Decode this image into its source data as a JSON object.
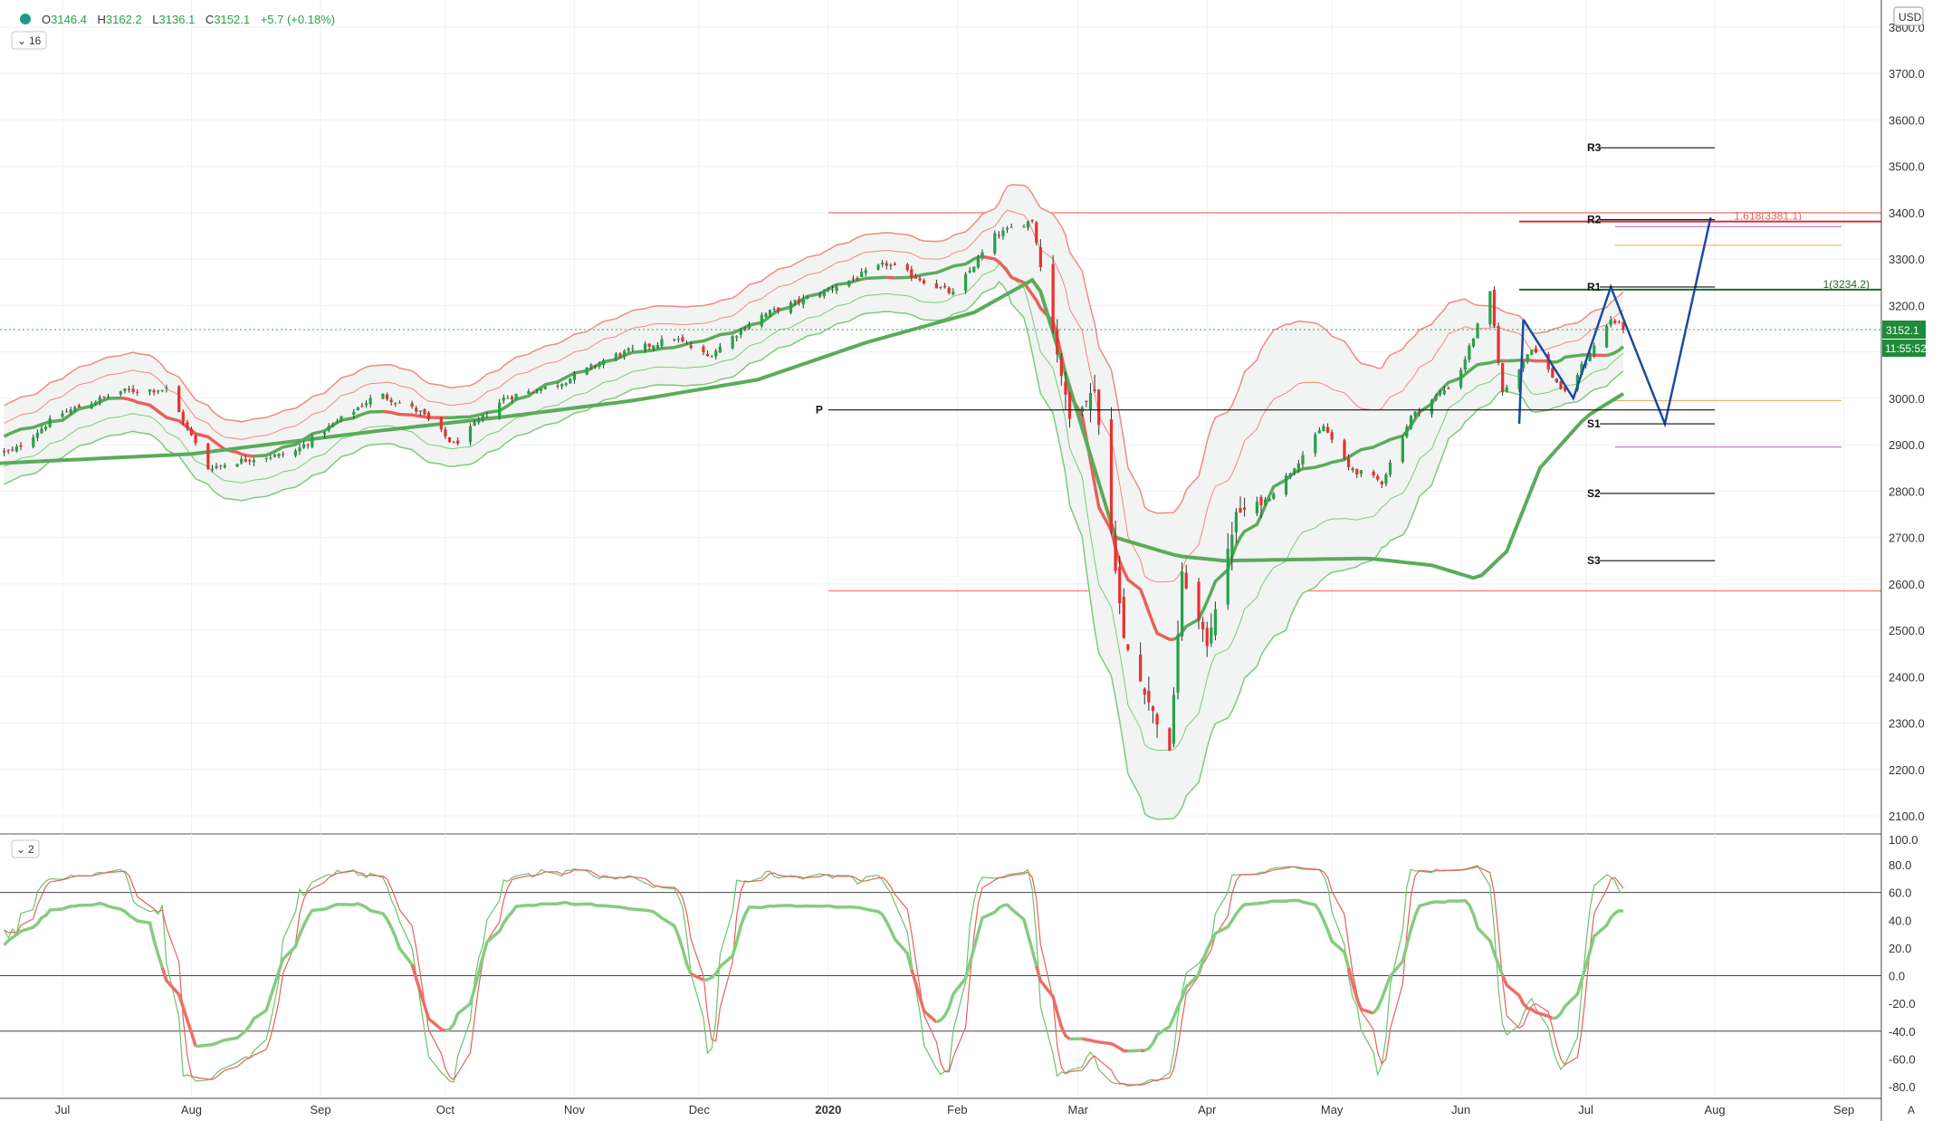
{
  "header": {
    "open_label": "O",
    "open": "3146.4",
    "high_label": "H",
    "high": "3162.2",
    "low_label": "L",
    "low": "3136.1",
    "close_label": "C",
    "close": "3152.1",
    "change": "+5.7 (+0.18%)",
    "interval_badge": "16",
    "currency": "USD"
  },
  "oscillator": {
    "badge": "2"
  },
  "price_box": {
    "value": "3152.1",
    "countdown": "11:55:52"
  },
  "pivots": {
    "R3": "R3",
    "R2": "R2",
    "R1": "R1",
    "P": "P",
    "S1": "S1",
    "S2": "S2",
    "S3": "S3"
  },
  "fib_labels": {
    "f1618": "1.618(3381.1)",
    "f1": "1(3234.2)"
  },
  "colors": {
    "up": "#26a24a",
    "down": "#e8312f",
    "band": "#f08a84",
    "ma": "#5aab5a",
    "fcst": "#1c4aa0"
  },
  "chart_data": [
    {
      "type": "candlestick",
      "price_ticks": [
        "3800.0",
        "3700.0",
        "3600.0",
        "3500.0",
        "3400.0",
        "3300.0",
        "3200.0",
        "3100.0",
        "3000.0",
        "2900.0",
        "2800.0",
        "2700.0",
        "2600.0",
        "2500.0",
        "2400.0",
        "2300.0",
        "2200.0",
        "2100.0"
      ],
      "ylim": [
        2070,
        3810
      ],
      "x_ticks": [
        "Jul",
        "Aug",
        "Sep",
        "Oct",
        "Nov",
        "Dec",
        "2020",
        "Feb",
        "Mar",
        "Apr",
        "May",
        "Jun",
        "Jul",
        "Aug",
        "Sep"
      ],
      "date_range": [
        "2019-06-16",
        "2020-09-10"
      ],
      "trend_anchors": [
        [
          "2019-06-19",
          2885
        ],
        [
          "2019-06-30",
          2965
        ],
        [
          "2019-07-15",
          3015
        ],
        [
          "2019-07-26",
          3020
        ],
        [
          "2019-08-05",
          2850
        ],
        [
          "2019-08-15",
          2870
        ],
        [
          "2019-08-25",
          2880
        ],
        [
          "2019-09-05",
          2950
        ],
        [
          "2019-09-15",
          3010
        ],
        [
          "2019-09-25",
          2970
        ],
        [
          "2019-10-03",
          2900
        ],
        [
          "2019-10-15",
          3000
        ],
        [
          "2019-10-28",
          3030
        ],
        [
          "2019-11-10",
          3090
        ],
        [
          "2019-11-25",
          3130
        ],
        [
          "2019-12-03",
          3090
        ],
        [
          "2019-12-15",
          3175
        ],
        [
          "2019-12-31",
          3230
        ],
        [
          "2020-01-15",
          3290
        ],
        [
          "2020-01-31",
          3225
        ],
        [
          "2020-02-10",
          3350
        ],
        [
          "2020-02-19",
          3385
        ],
        [
          "2020-02-28",
          2955
        ],
        [
          "2020-03-05",
          3020
        ],
        [
          "2020-03-12",
          2480
        ],
        [
          "2020-03-16",
          2390
        ],
        [
          "2020-03-23",
          2235
        ],
        [
          "2020-03-26",
          2620
        ],
        [
          "2020-04-01",
          2470
        ],
        [
          "2020-04-08",
          2750
        ],
        [
          "2020-04-15",
          2780
        ],
        [
          "2020-04-20",
          2830
        ],
        [
          "2020-04-29",
          2940
        ],
        [
          "2020-05-05",
          2850
        ],
        [
          "2020-05-13",
          2820
        ],
        [
          "2020-05-20",
          2960
        ],
        [
          "2020-05-31",
          3040
        ],
        [
          "2020-06-08",
          3225
        ],
        [
          "2020-06-11",
          3010
        ],
        [
          "2020-06-18",
          3110
        ],
        [
          "2020-06-26",
          3010
        ],
        [
          "2020-07-07",
          3170
        ],
        [
          "2020-07-10",
          3152
        ]
      ],
      "series": [
        {
          "name": "",
          "kind": "candles"
        },
        {
          "name": "",
          "kind": "moving-average",
          "anchors": [
            [
              "2019-06-16",
              2860
            ],
            [
              "2019-08-01",
              2880
            ],
            [
              "2019-09-15",
              2930
            ],
            [
              "2019-10-15",
              2960
            ],
            [
              "2019-11-15",
              2995
            ],
            [
              "2019-12-15",
              3040
            ],
            [
              "2020-01-10",
              3120
            ],
            [
              "2020-02-05",
              3185
            ],
            [
              "2020-02-20",
              3260
            ],
            [
              "2020-03-10",
              2700
            ],
            [
              "2020-03-25",
              2660
            ],
            [
              "2020-04-05",
              2650
            ],
            [
              "2020-05-10",
              2655
            ],
            [
              "2020-05-25",
              2640
            ],
            [
              "2020-06-05",
              2610
            ],
            [
              "2020-06-12",
              2670
            ],
            [
              "2020-06-20",
              2850
            ],
            [
              "2020-07-01",
              2960
            ],
            [
              "2020-07-10",
              3010
            ]
          ]
        },
        {
          "name": "",
          "kind": "band-upper",
          "offset": 1
        },
        {
          "name": "",
          "kind": "band-lower",
          "offset": -1
        }
      ],
      "levels": [
        {
          "label": "R3",
          "y": 3540
        },
        {
          "label": "R2",
          "y": 3385
        },
        {
          "label": "R1",
          "y": 3240
        },
        {
          "label": "P",
          "y": 2975
        },
        {
          "label": "S1",
          "y": 2945
        },
        {
          "label": "S2",
          "y": 2795
        },
        {
          "label": "S3",
          "y": 2650
        }
      ],
      "horizontal_lines": [
        3400,
        2585,
        3381.1,
        3234.2
      ],
      "forecast_path": [
        [
          "2020-06-16",
          3170
        ],
        [
          "2020-06-28",
          3000
        ],
        [
          "2020-07-07",
          3240
        ],
        [
          "2020-07-20",
          2945
        ],
        [
          "2020-07-31",
          3390
        ]
      ],
      "last_price": 3152.1
    },
    {
      "type": "line",
      "osc_ticks": [
        "100.0",
        "80.0",
        "60.0",
        "40.0",
        "20.0",
        "0.0",
        "-20.0",
        "-40.0",
        "-60.0",
        "-80.0"
      ],
      "ylim": [
        -80,
        100
      ],
      "levels": [
        60,
        0,
        -40
      ],
      "series": [
        {
          "name": "",
          "kind": "main"
        },
        {
          "name": "",
          "kind": "fast"
        },
        {
          "name": "",
          "kind": "signal"
        }
      ]
    }
  ]
}
